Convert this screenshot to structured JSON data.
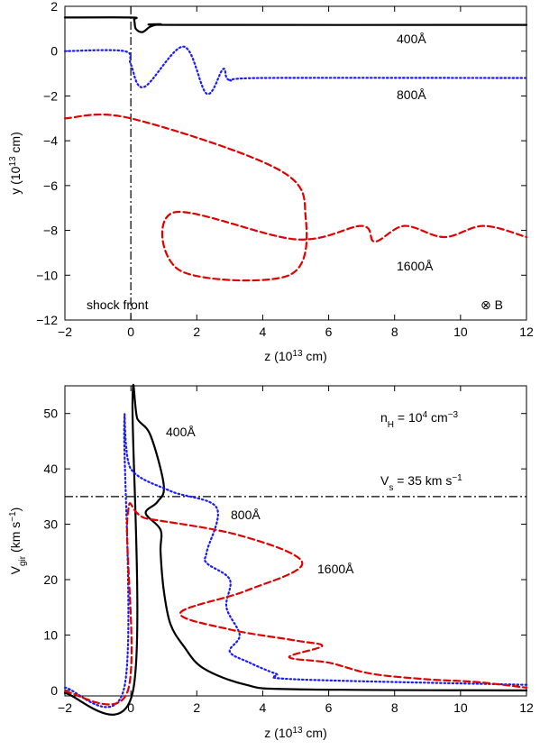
{
  "chart_data": [
    {
      "type": "line",
      "xlabel": "z (10¹³ cm)",
      "ylabel": "y (10¹³ cm)",
      "xlim": [
        -2,
        12
      ],
      "ylim": [
        -12,
        2
      ],
      "xticks": [
        "−2",
        "0",
        "2",
        "4",
        "6",
        "8",
        "10",
        "12"
      ],
      "yticks": [
        "−12",
        "−10",
        "−8",
        "−6",
        "−4",
        "−2",
        "0",
        "2"
      ],
      "annotations": {
        "shock": "shock front",
        "field": "⊗ B"
      },
      "series": [
        {
          "name": "400Å",
          "color": "#000000",
          "style": "solid",
          "points": [
            [
              -2,
              1.5
            ],
            [
              0,
              1.5
            ],
            [
              0.1,
              1.4
            ],
            [
              0.15,
              1.0
            ],
            [
              0.35,
              0.85
            ],
            [
              0.6,
              1.1
            ],
            [
              0.9,
              1.2
            ],
            [
              1.5,
              1.17
            ],
            [
              12,
              1.17
            ]
          ]
        },
        {
          "name": "800Å",
          "color": "#1a1aff",
          "style": "dotted",
          "points": [
            [
              -2,
              0
            ],
            [
              -0.2,
              0
            ],
            [
              0,
              -0.6
            ],
            [
              0.4,
              -1.6
            ],
            [
              1.6,
              0.2
            ],
            [
              2.3,
              -1.9
            ],
            [
              2.8,
              -0.8
            ],
            [
              3.0,
              -1.3
            ],
            [
              4,
              -1.2
            ],
            [
              12,
              -1.2
            ]
          ]
        },
        {
          "name": "1600Å",
          "color": "#e00000",
          "style": "dashed",
          "points": [
            [
              -2,
              -3
            ],
            [
              0,
              -3
            ],
            [
              4.5,
              -5.3
            ],
            [
              5.3,
              -7.4
            ],
            [
              4.8,
              -10.0
            ],
            [
              1.5,
              -9.8
            ],
            [
              1.3,
              -7.2
            ],
            [
              5.0,
              -8.4
            ],
            [
              7.0,
              -7.8
            ],
            [
              7.4,
              -8.5
            ],
            [
              8.3,
              -7.8
            ],
            [
              9.5,
              -8.3
            ],
            [
              10.7,
              -7.8
            ],
            [
              12,
              -8.3
            ]
          ]
        }
      ]
    },
    {
      "type": "line",
      "xlabel": "z (10¹³ cm)",
      "ylabel": "V_gir (km s⁻¹)",
      "xlim": [
        -2,
        12
      ],
      "ylim": [
        -1,
        55
      ],
      "xticks": [
        "−2",
        "0",
        "2",
        "4",
        "6",
        "8",
        "10",
        "12"
      ],
      "yticks": [
        "0",
        "10",
        "20",
        "30",
        "40",
        "50"
      ],
      "annotations": {
        "density": "n_H = 10⁴ cm⁻³",
        "shock_speed": "V_s = 35 km s⁻¹"
      },
      "reference_line": {
        "label": "V_s = 35 km s⁻¹",
        "y": 35
      },
      "series": [
        {
          "name": "400Å",
          "color": "#000000",
          "style": "solid",
          "points": [
            [
              -2,
              -0.5
            ],
            [
              0.05,
              -0.5
            ],
            [
              0.05,
              52
            ],
            [
              0.2,
              49
            ],
            [
              0.6,
              46
            ],
            [
              1.0,
              37
            ],
            [
              0.8,
              34
            ],
            [
              0.45,
              32
            ],
            [
              0.9,
              29
            ],
            [
              0.9,
              25
            ],
            [
              1.0,
              18
            ],
            [
              1.2,
              12
            ],
            [
              1.6,
              8
            ],
            [
              2.2,
              4
            ],
            [
              3.5,
              1
            ],
            [
              5,
              0.2
            ],
            [
              12,
              0
            ]
          ]
        },
        {
          "name": "800Å",
          "color": "#1a1aff",
          "style": "dotted",
          "points": [
            [
              -2,
              0.5
            ],
            [
              -0.2,
              0.5
            ],
            [
              -0.2,
              48
            ],
            [
              0,
              40
            ],
            [
              1.2,
              36
            ],
            [
              2.6,
              33
            ],
            [
              2.3,
              25
            ],
            [
              2.3,
              23
            ],
            [
              3.0,
              20
            ],
            [
              2.9,
              15
            ],
            [
              3.3,
              10
            ],
            [
              3.0,
              7
            ],
            [
              3.6,
              5
            ],
            [
              4.4,
              3
            ],
            [
              5,
              2
            ],
            [
              12,
              1
            ]
          ]
        },
        {
          "name": "1600Å",
          "color": "#e00000",
          "style": "dashed",
          "points": [
            [
              -2,
              -0.2
            ],
            [
              -0.1,
              -0.2
            ],
            [
              -0.1,
              31.5
            ],
            [
              0.5,
              31
            ],
            [
              3.3,
              28
            ],
            [
              5.2,
              23
            ],
            [
              3.5,
              18
            ],
            [
              1.5,
              14
            ],
            [
              3.0,
              11
            ],
            [
              5.0,
              9
            ],
            [
              5.8,
              8
            ],
            [
              4.8,
              6
            ],
            [
              6.0,
              5
            ],
            [
              7.3,
              3
            ],
            [
              9,
              2
            ],
            [
              10.5,
              1.5
            ],
            [
              12,
              0.5
            ]
          ]
        }
      ]
    }
  ],
  "labels": {
    "top_400": "400Å",
    "top_800": "800Å",
    "top_1600": "1600Å",
    "bottom_400": "400Å",
    "bottom_800": "800Å",
    "bottom_1600": "1600Å"
  }
}
